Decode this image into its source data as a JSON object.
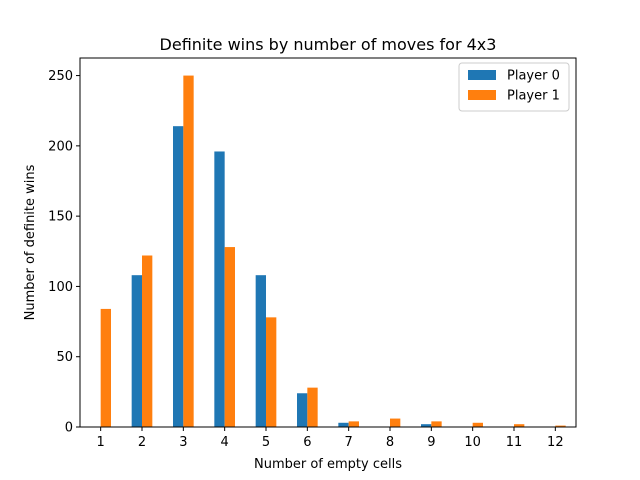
{
  "chart_data": {
    "type": "bar",
    "title": "Definite wins by number of moves for 4x3",
    "xlabel": "Number of empty cells",
    "ylabel": "Number of definite wins",
    "categories": [
      "1",
      "2",
      "3",
      "4",
      "5",
      "6",
      "7",
      "8",
      "9",
      "10",
      "11",
      "12"
    ],
    "series": [
      {
        "name": "Player 0",
        "color": "#1f77b4",
        "values": [
          0,
          108,
          214,
          196,
          108,
          24,
          3,
          0,
          2,
          0,
          0,
          0
        ]
      },
      {
        "name": "Player 1",
        "color": "#ff7f0e",
        "values": [
          84,
          122,
          250,
          128,
          78,
          28,
          4,
          6,
          4,
          3,
          2,
          1
        ]
      }
    ],
    "ylim": [
      0,
      262.5
    ],
    "yticks": [
      0,
      50,
      100,
      150,
      200,
      250
    ],
    "legend_position": "top-right",
    "grid": false
  }
}
